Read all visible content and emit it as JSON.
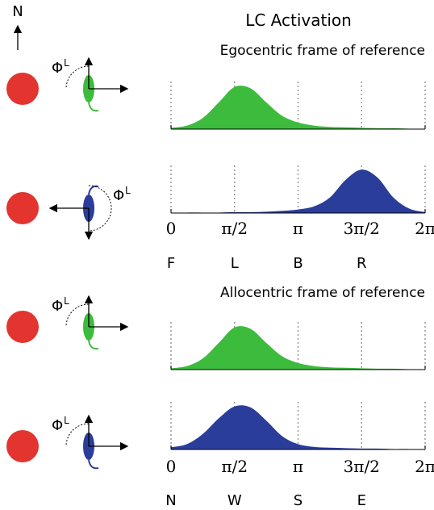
{
  "header": {
    "title": "LC Activation"
  },
  "diagram": {
    "north": "N",
    "angle_label": "Φ",
    "angle_sup": "L"
  },
  "chart_data": [
    {
      "type": "area",
      "title": "Egocentric frame of reference",
      "x": [
        0,
        0.3927,
        0.7854,
        1.1781,
        1.5708,
        1.9635,
        2.3562,
        2.7489,
        3.1416,
        3.5343,
        3.927,
        4.3197,
        4.7124,
        5.1051,
        5.4978,
        5.8905,
        6.2832
      ],
      "xlim": [
        0,
        6.2832
      ],
      "ylim": [
        0,
        1
      ],
      "xticks": [
        {
          "value": 0,
          "label": "0"
        },
        {
          "value": 1.5708,
          "label": "π/2"
        },
        {
          "value": 3.1416,
          "label": "π"
        },
        {
          "value": 4.7124,
          "label": "3π/2"
        },
        {
          "value": 6.2832,
          "label": "2π"
        }
      ],
      "tick_directions": [
        "F",
        "L",
        "B",
        "R"
      ],
      "grid": true,
      "series": [
        {
          "color": "#3dbb3d",
          "values": [
            0.03,
            0.08,
            0.25,
            0.6,
            0.95,
            0.92,
            0.6,
            0.3,
            0.15,
            0.08,
            0.05,
            0.04,
            0.03,
            0.02,
            0.02,
            0.01,
            0.01
          ]
        },
        {
          "color": "#2b3d9b",
          "values": [
            0,
            0.01,
            0.01,
            0.01,
            0.02,
            0.02,
            0.03,
            0.05,
            0.08,
            0.15,
            0.35,
            0.75,
            0.98,
            0.8,
            0.35,
            0.1,
            0.02
          ]
        }
      ]
    },
    {
      "type": "area",
      "title": "Allocentric frame of reference",
      "x": [
        0,
        0.3927,
        0.7854,
        1.1781,
        1.5708,
        1.9635,
        2.3562,
        2.7489,
        3.1416,
        3.5343,
        3.927,
        4.3197,
        4.7124,
        5.1051,
        5.4978,
        5.8905,
        6.2832
      ],
      "xlim": [
        0,
        6.2832
      ],
      "ylim": [
        0,
        1
      ],
      "xticks": [
        {
          "value": 0,
          "label": "0"
        },
        {
          "value": 1.5708,
          "label": "π/2"
        },
        {
          "value": 3.1416,
          "label": "π"
        },
        {
          "value": 4.7124,
          "label": "3π/2"
        },
        {
          "value": 6.2832,
          "label": "2π"
        }
      ],
      "tick_directions": [
        "N",
        "W",
        "S",
        "E"
      ],
      "grid": true,
      "series": [
        {
          "color": "#3dbb3d",
          "values": [
            0.03,
            0.08,
            0.25,
            0.6,
            0.95,
            0.92,
            0.6,
            0.3,
            0.15,
            0.08,
            0.05,
            0.04,
            0.03,
            0.02,
            0.02,
            0.01,
            0.01
          ]
        },
        {
          "color": "#2b3d9b",
          "values": [
            0.05,
            0.12,
            0.35,
            0.7,
            0.97,
            0.95,
            0.65,
            0.3,
            0.12,
            0.06,
            0.04,
            0.03,
            0.02,
            0.02,
            0.01,
            0.01,
            0
          ]
        }
      ]
    }
  ]
}
